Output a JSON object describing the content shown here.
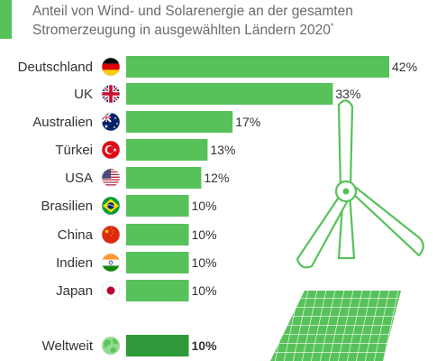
{
  "title_main": "Anteil von Wind- und Solarenergie an der gesamten Stromerzeugung in ausgewählten Ländern 2020",
  "title_footnote": "*",
  "colors": {
    "bar": "#57c15a",
    "bar_world": "#2e9a3a",
    "accent": "#57c15a",
    "illustration": "#57c15a",
    "label": "#333333"
  },
  "chart_data": {
    "type": "bar",
    "orientation": "horizontal",
    "title": "Anteil von Wind- und Solarenergie an der gesamten Stromerzeugung in ausgewählten Ländern 2020*",
    "value_suffix": "%",
    "categories": [
      "Deutschland",
      "UK",
      "Australien",
      "Türkei",
      "USA",
      "Brasilien",
      "China",
      "Indien",
      "Japan",
      "Weltweit"
    ],
    "flags": [
      "germany-flag-icon",
      "uk-flag-icon",
      "australia-flag-icon",
      "turkey-flag-icon",
      "usa-flag-icon",
      "brazil-flag-icon",
      "china-flag-icon",
      "india-flag-icon",
      "japan-flag-icon",
      "globe-icon"
    ],
    "values": [
      42,
      33,
      17,
      13,
      12,
      10,
      10,
      10,
      10,
      10
    ],
    "highlight": [
      "Weltweit"
    ],
    "ylim": [
      0,
      42
    ],
    "grid": false,
    "legend": "none"
  }
}
